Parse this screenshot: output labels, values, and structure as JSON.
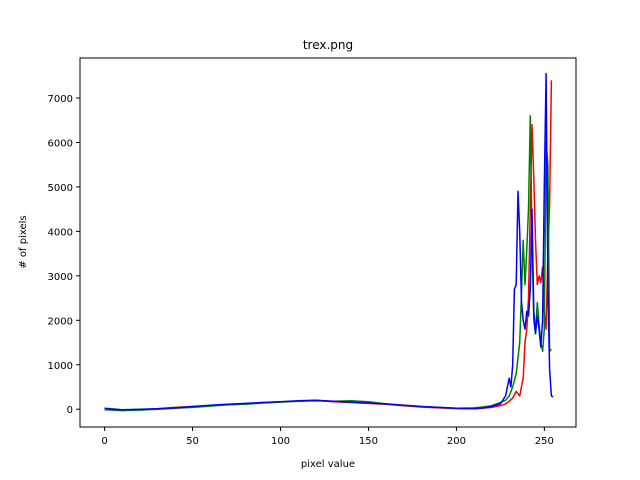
{
  "chart_data": {
    "type": "line",
    "title": "trex.png",
    "xlabel": "pixel value",
    "ylabel": "# of pixels",
    "xlim": [
      -14,
      268
    ],
    "ylim": [
      -400,
      7900
    ],
    "xticks": [
      0,
      50,
      100,
      150,
      200,
      250
    ],
    "yticks": [
      0,
      1000,
      2000,
      3000,
      4000,
      5000,
      6000,
      7000
    ],
    "grid": false,
    "legend": "none",
    "series": [
      {
        "color": "#ff0000",
        "points": [
          [
            0,
            10
          ],
          [
            10,
            -20
          ],
          [
            20,
            -10
          ],
          [
            30,
            10
          ],
          [
            40,
            40
          ],
          [
            50,
            60
          ],
          [
            60,
            80
          ],
          [
            70,
            100
          ],
          [
            80,
            120
          ],
          [
            90,
            150
          ],
          [
            100,
            170
          ],
          [
            110,
            180
          ],
          [
            120,
            200
          ],
          [
            130,
            170
          ],
          [
            140,
            150
          ],
          [
            150,
            130
          ],
          [
            160,
            110
          ],
          [
            170,
            80
          ],
          [
            180,
            50
          ],
          [
            190,
            30
          ],
          [
            200,
            15
          ],
          [
            210,
            10
          ],
          [
            215,
            20
          ],
          [
            220,
            40
          ],
          [
            225,
            80
          ],
          [
            228,
            120
          ],
          [
            230,
            180
          ],
          [
            232,
            250
          ],
          [
            234,
            400
          ],
          [
            236,
            300
          ],
          [
            238,
            700
          ],
          [
            239,
            1500
          ],
          [
            240,
            1800
          ],
          [
            241,
            2500
          ],
          [
            242,
            4500
          ],
          [
            243,
            6400
          ],
          [
            244,
            5200
          ],
          [
            245,
            3800
          ],
          [
            246,
            2800
          ],
          [
            247,
            3000
          ],
          [
            248,
            2850
          ],
          [
            249,
            3200
          ],
          [
            250,
            2200
          ],
          [
            251,
            1800
          ],
          [
            252,
            3500
          ],
          [
            253,
            4600
          ],
          [
            254,
            7400
          ]
        ]
      },
      {
        "color": "#008000",
        "points": [
          [
            0,
            -10
          ],
          [
            10,
            -30
          ],
          [
            20,
            -20
          ],
          [
            30,
            0
          ],
          [
            40,
            20
          ],
          [
            50,
            40
          ],
          [
            60,
            70
          ],
          [
            70,
            100
          ],
          [
            80,
            110
          ],
          [
            90,
            140
          ],
          [
            100,
            160
          ],
          [
            110,
            180
          ],
          [
            120,
            190
          ],
          [
            130,
            180
          ],
          [
            140,
            190
          ],
          [
            150,
            170
          ],
          [
            160,
            120
          ],
          [
            170,
            90
          ],
          [
            180,
            60
          ],
          [
            190,
            40
          ],
          [
            200,
            20
          ],
          [
            210,
            30
          ],
          [
            215,
            50
          ],
          [
            220,
            80
          ],
          [
            225,
            150
          ],
          [
            228,
            200
          ],
          [
            230,
            300
          ],
          [
            232,
            500
          ],
          [
            234,
            800
          ],
          [
            236,
            1500
          ],
          [
            237,
            2600
          ],
          [
            238,
            3800
          ],
          [
            239,
            2800
          ],
          [
            240,
            3600
          ],
          [
            241,
            4500
          ],
          [
            242,
            6600
          ],
          [
            243,
            3800
          ],
          [
            244,
            2000
          ],
          [
            245,
            1700
          ],
          [
            246,
            2400
          ],
          [
            247,
            1900
          ],
          [
            248,
            1500
          ],
          [
            249,
            1300
          ],
          [
            250,
            1800
          ],
          [
            251,
            6000
          ],
          [
            252,
            5500
          ],
          [
            253,
            1300
          ],
          [
            254,
            1350
          ]
        ]
      },
      {
        "color": "#0000ff",
        "points": [
          [
            0,
            20
          ],
          [
            10,
            -10
          ],
          [
            20,
            0
          ],
          [
            30,
            10
          ],
          [
            40,
            30
          ],
          [
            50,
            60
          ],
          [
            60,
            90
          ],
          [
            70,
            110
          ],
          [
            80,
            130
          ],
          [
            90,
            150
          ],
          [
            100,
            170
          ],
          [
            110,
            190
          ],
          [
            120,
            200
          ],
          [
            130,
            180
          ],
          [
            140,
            160
          ],
          [
            150,
            140
          ],
          [
            160,
            120
          ],
          [
            170,
            90
          ],
          [
            180,
            60
          ],
          [
            190,
            40
          ],
          [
            200,
            20
          ],
          [
            210,
            15
          ],
          [
            215,
            30
          ],
          [
            220,
            60
          ],
          [
            225,
            120
          ],
          [
            228,
            300
          ],
          [
            230,
            700
          ],
          [
            231,
            500
          ],
          [
            232,
            1000
          ],
          [
            233,
            2700
          ],
          [
            234,
            2800
          ],
          [
            235,
            4900
          ],
          [
            236,
            4000
          ],
          [
            237,
            2400
          ],
          [
            238,
            2000
          ],
          [
            239,
            1800
          ],
          [
            240,
            2200
          ],
          [
            241,
            2100
          ],
          [
            242,
            2700
          ],
          [
            243,
            4500
          ],
          [
            244,
            2200
          ],
          [
            245,
            1700
          ],
          [
            246,
            2100
          ],
          [
            247,
            1800
          ],
          [
            248,
            1400
          ],
          [
            249,
            2000
          ],
          [
            250,
            5000
          ],
          [
            251,
            7550
          ],
          [
            252,
            2700
          ],
          [
            253,
            900
          ],
          [
            254,
            300
          ],
          [
            255,
            280
          ]
        ]
      }
    ]
  }
}
